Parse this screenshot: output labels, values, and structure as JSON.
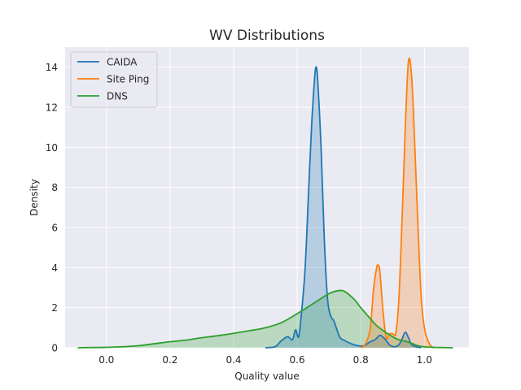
{
  "chart_data": {
    "type": "area",
    "title": "WV Distributions",
    "xlabel": "Quality value",
    "ylabel": "Density",
    "xlim": [
      -0.13,
      1.14
    ],
    "ylim": [
      0,
      15
    ],
    "xticks": [
      0.0,
      0.2,
      0.4,
      0.6,
      0.8,
      1.0
    ],
    "xtick_labels": [
      "0.0",
      "0.2",
      "0.4",
      "0.6",
      "0.8",
      "1.0"
    ],
    "yticks": [
      0,
      2,
      4,
      6,
      8,
      10,
      12,
      14
    ],
    "ytick_labels": [
      "0",
      "2",
      "4",
      "6",
      "8",
      "10",
      "12",
      "14"
    ],
    "grid": true,
    "legend_position": "top-left",
    "background": "#eaeaf2",
    "series": [
      {
        "name": "CAIDA",
        "color": "#1f77b4",
        "x": [
          0.5,
          0.53,
          0.55,
          0.57,
          0.585,
          0.595,
          0.605,
          0.615,
          0.625,
          0.635,
          0.645,
          0.655,
          0.66,
          0.665,
          0.675,
          0.685,
          0.695,
          0.705,
          0.715,
          0.725,
          0.735,
          0.75,
          0.77,
          0.79,
          0.81,
          0.83,
          0.845,
          0.86,
          0.875,
          0.89,
          0.905,
          0.92,
          0.93,
          0.94,
          0.95,
          0.96,
          0.975,
          0.99
        ],
        "y": [
          0.0,
          0.05,
          0.35,
          0.55,
          0.4,
          0.9,
          0.55,
          2.0,
          4.0,
          7.5,
          11.0,
          13.5,
          14.0,
          13.2,
          10.0,
          5.5,
          2.5,
          1.6,
          1.35,
          0.9,
          0.5,
          0.35,
          0.2,
          0.1,
          0.1,
          0.3,
          0.4,
          0.62,
          0.45,
          0.15,
          0.05,
          0.15,
          0.45,
          0.78,
          0.5,
          0.15,
          0.05,
          0.0
        ]
      },
      {
        "name": "Site Ping",
        "color": "#ff7f0e",
        "x": [
          0.8,
          0.815,
          0.83,
          0.84,
          0.85,
          0.855,
          0.86,
          0.87,
          0.88,
          0.89,
          0.9,
          0.91,
          0.92,
          0.93,
          0.94,
          0.95,
          0.96,
          0.97,
          0.98,
          0.99,
          1.0,
          1.01,
          1.02,
          1.03
        ],
        "y": [
          0.0,
          0.2,
          1.0,
          2.9,
          4.0,
          4.1,
          3.8,
          1.8,
          0.5,
          0.7,
          0.7,
          0.75,
          2.5,
          6.5,
          11.0,
          14.3,
          13.5,
          10.0,
          6.0,
          2.5,
          1.0,
          0.4,
          0.1,
          0.0
        ]
      },
      {
        "name": "DNS",
        "color": "#2ca02c",
        "x": [
          -0.09,
          -0.05,
          0.0,
          0.05,
          0.1,
          0.15,
          0.2,
          0.25,
          0.3,
          0.35,
          0.4,
          0.45,
          0.5,
          0.55,
          0.6,
          0.65,
          0.7,
          0.73,
          0.75,
          0.78,
          0.8,
          0.83,
          0.85,
          0.88,
          0.9,
          0.92,
          0.95,
          0.98,
          1.0,
          1.03,
          1.06,
          1.09
        ],
        "y": [
          0.0,
          0.01,
          0.02,
          0.05,
          0.1,
          0.2,
          0.3,
          0.38,
          0.5,
          0.6,
          0.72,
          0.85,
          1.0,
          1.25,
          1.7,
          2.2,
          2.7,
          2.85,
          2.8,
          2.4,
          2.0,
          1.45,
          1.1,
          0.75,
          0.55,
          0.4,
          0.28,
          0.1,
          0.05,
          0.02,
          0.01,
          0.0
        ]
      }
    ]
  }
}
